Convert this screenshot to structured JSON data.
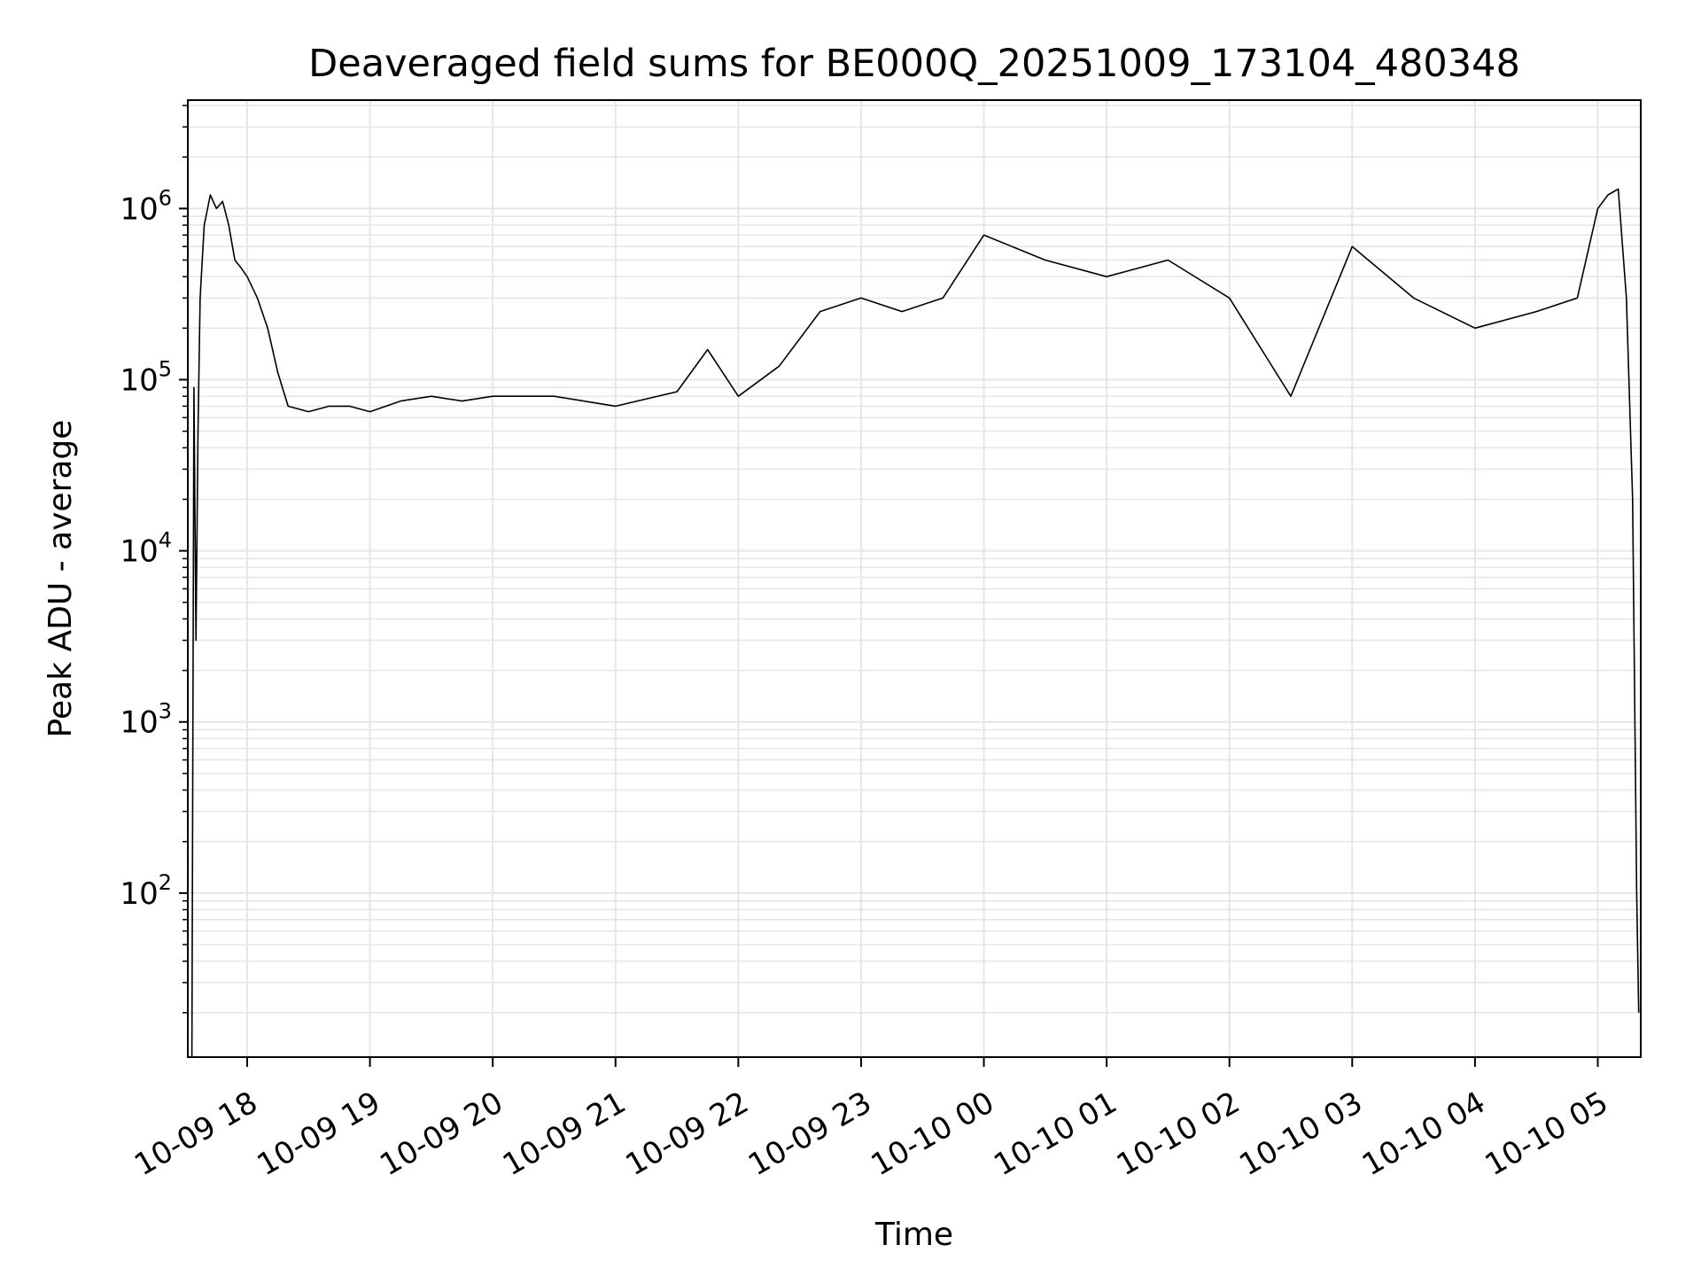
{
  "chart_data": {
    "type": "line",
    "title": "Deaveraged field sums for BE000Q_20251009_173104_480348",
    "xlabel": "Time",
    "ylabel": "Peak ADU - average",
    "yscale": "log",
    "ylim": [
      11,
      4300000
    ],
    "xlim": [
      "2025-10-09 17:31",
      "2025-10-10 05:21"
    ],
    "grid": true,
    "line_color": "#000000",
    "grid_color": "#e6e6e6",
    "x_ticks": [
      {
        "value": "2025-10-09 18:00",
        "label": "10-09 18"
      },
      {
        "value": "2025-10-09 19:00",
        "label": "10-09 19"
      },
      {
        "value": "2025-10-09 20:00",
        "label": "10-09 20"
      },
      {
        "value": "2025-10-09 21:00",
        "label": "10-09 21"
      },
      {
        "value": "2025-10-09 22:00",
        "label": "10-09 22"
      },
      {
        "value": "2025-10-09 23:00",
        "label": "10-09 23"
      },
      {
        "value": "2025-10-10 00:00",
        "label": "10-10 00"
      },
      {
        "value": "2025-10-10 01:00",
        "label": "10-10 01"
      },
      {
        "value": "2025-10-10 02:00",
        "label": "10-10 02"
      },
      {
        "value": "2025-10-10 03:00",
        "label": "10-10 03"
      },
      {
        "value": "2025-10-10 04:00",
        "label": "10-10 04"
      },
      {
        "value": "2025-10-10 05:00",
        "label": "10-10 05"
      }
    ],
    "y_ticks": [
      {
        "value": 100,
        "base": "10",
        "exp": "2"
      },
      {
        "value": 1000,
        "base": "10",
        "exp": "3"
      },
      {
        "value": 10000,
        "base": "10",
        "exp": "4"
      },
      {
        "value": 100000,
        "base": "10",
        "exp": "5"
      },
      {
        "value": 1000000,
        "base": "10",
        "exp": "6"
      }
    ],
    "series": [
      {
        "x": [
          "2025-10-09 17:33",
          "2025-10-09 17:34",
          "2025-10-09 17:35",
          "2025-10-09 17:36",
          "2025-10-09 17:37",
          "2025-10-09 17:39",
          "2025-10-09 17:42",
          "2025-10-09 17:45",
          "2025-10-09 17:48",
          "2025-10-09 17:51",
          "2025-10-09 17:54",
          "2025-10-09 17:57",
          "2025-10-09 18:00",
          "2025-10-09 18:05",
          "2025-10-09 18:10",
          "2025-10-09 18:15",
          "2025-10-09 18:20",
          "2025-10-09 18:30",
          "2025-10-09 18:40",
          "2025-10-09 18:50",
          "2025-10-09 19:00",
          "2025-10-09 19:15",
          "2025-10-09 19:30",
          "2025-10-09 19:45",
          "2025-10-09 20:00",
          "2025-10-09 20:30",
          "2025-10-09 21:00",
          "2025-10-09 21:30",
          "2025-10-09 21:45",
          "2025-10-09 22:00",
          "2025-10-09 22:20",
          "2025-10-09 22:40",
          "2025-10-09 23:00",
          "2025-10-09 23:20",
          "2025-10-09 23:40",
          "2025-10-10 00:00",
          "2025-10-10 00:30",
          "2025-10-10 01:00",
          "2025-10-10 01:30",
          "2025-10-10 02:00",
          "2025-10-10 02:30",
          "2025-10-10 03:00",
          "2025-10-10 03:30",
          "2025-10-10 04:00",
          "2025-10-10 04:30",
          "2025-10-10 04:50",
          "2025-10-10 05:00",
          "2025-10-10 05:05",
          "2025-10-10 05:10",
          "2025-10-10 05:14",
          "2025-10-10 05:17",
          "2025-10-10 05:19",
          "2025-10-10 05:20"
        ],
        "values": [
          11,
          90000,
          3000,
          50000,
          300000,
          800000,
          1200000,
          1000000,
          1100000,
          800000,
          500000,
          450000,
          400000,
          300000,
          200000,
          110000,
          70000,
          65000,
          70000,
          70000,
          65000,
          75000,
          80000,
          75000,
          80000,
          80000,
          70000,
          85000,
          150000,
          80000,
          120000,
          250000,
          300000,
          250000,
          300000,
          700000,
          500000,
          400000,
          500000,
          300000,
          80000,
          600000,
          300000,
          200000,
          250000,
          300000,
          1000000,
          1200000,
          1300000,
          300000,
          20000,
          100,
          20
        ]
      }
    ]
  }
}
